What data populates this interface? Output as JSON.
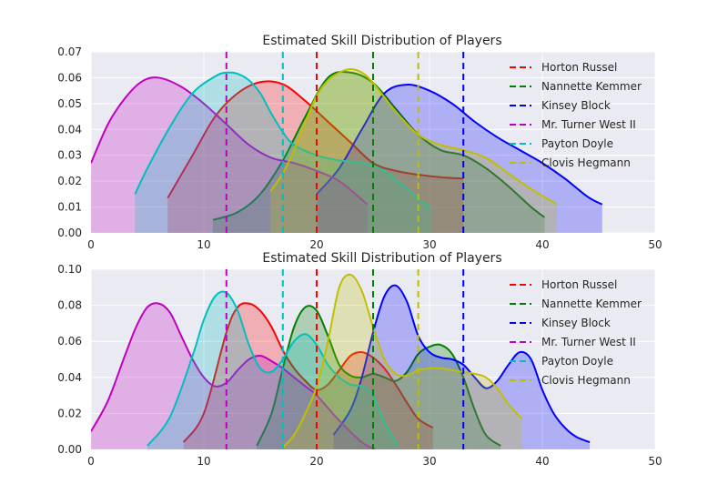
{
  "chart_data": [
    {
      "type": "area",
      "title": "Estimated Skill Distribution of Players",
      "xlim": [
        0,
        50
      ],
      "ylim": [
        0,
        0.07
      ],
      "xticks": [
        "0",
        "10",
        "20",
        "30",
        "40",
        "50"
      ],
      "yticks": [
        "0.00",
        "0.01",
        "0.02",
        "0.03",
        "0.04",
        "0.05",
        "0.06",
        "0.07"
      ],
      "grid": true,
      "legend": "upper-right",
      "series": [
        {
          "name": "Horton Russel",
          "color": "#ff0000",
          "mean_line": 20,
          "x": [
            6.8,
            9,
            11,
            13,
            15,
            17,
            19,
            21,
            23,
            25,
            27,
            29,
            31,
            33
          ],
          "y": [
            0.0135,
            0.03,
            0.045,
            0.054,
            0.0583,
            0.0575,
            0.051,
            0.043,
            0.035,
            0.027,
            0.024,
            0.0225,
            0.0215,
            0.021
          ]
        },
        {
          "name": "Nannette Kemmer",
          "color": "#008000",
          "mean_line": 25,
          "x": [
            10.8,
            13,
            15,
            17,
            19,
            21,
            23,
            25,
            27,
            29,
            31,
            33,
            35,
            37,
            39,
            40.2
          ],
          "y": [
            0.005,
            0.008,
            0.015,
            0.028,
            0.045,
            0.06,
            0.062,
            0.058,
            0.048,
            0.038,
            0.032,
            0.03,
            0.025,
            0.018,
            0.01,
            0.006
          ]
        },
        {
          "name": "Kinsey Block",
          "color": "#0000ff",
          "mean_line": 33,
          "x": [
            20,
            22,
            24,
            26,
            28,
            30,
            32,
            34,
            36,
            38,
            40,
            42,
            44,
            45.3
          ],
          "y": [
            0.015,
            0.025,
            0.04,
            0.054,
            0.0573,
            0.055,
            0.05,
            0.043,
            0.037,
            0.032,
            0.027,
            0.021,
            0.014,
            0.011
          ]
        },
        {
          "name": "Mr. Turner West II",
          "color": "#bf00bf",
          "mean_line": 12,
          "x": [
            0,
            1.5,
            3,
            4.5,
            6,
            8,
            10,
            12,
            14,
            16,
            18,
            20,
            22,
            24.5
          ],
          "y": [
            0.027,
            0.042,
            0.052,
            0.0585,
            0.06,
            0.0565,
            0.05,
            0.042,
            0.034,
            0.029,
            0.027,
            0.024,
            0.02,
            0.011
          ]
        },
        {
          "name": "Payton Doyle",
          "color": "#00bfbf",
          "mean_line": 17,
          "x": [
            3.9,
            5,
            7,
            9,
            11,
            12,
            13,
            14,
            15,
            16,
            17,
            18,
            20,
            22,
            24,
            26,
            28,
            30.2
          ],
          "y": [
            0.015,
            0.025,
            0.041,
            0.054,
            0.0605,
            0.062,
            0.0615,
            0.059,
            0.054,
            0.046,
            0.039,
            0.034,
            0.03,
            0.028,
            0.027,
            0.024,
            0.017,
            0.009
          ]
        },
        {
          "name": "Clovis Hegmann",
          "color": "#bfbf00",
          "mean_line": 29,
          "x": [
            15.9,
            17,
            18,
            19,
            20,
            21,
            22,
            23,
            24,
            25,
            27,
            29,
            31,
            33,
            35,
            37,
            39,
            41.3
          ],
          "y": [
            0.016,
            0.023,
            0.032,
            0.043,
            0.053,
            0.059,
            0.062,
            0.0633,
            0.062,
            0.058,
            0.047,
            0.038,
            0.034,
            0.032,
            0.029,
            0.023,
            0.017,
            0.011
          ]
        }
      ]
    },
    {
      "type": "area",
      "title": "Estimated Skill Distribution of Players",
      "xlim": [
        0,
        50
      ],
      "ylim": [
        0,
        0.1
      ],
      "xticks": [
        "0",
        "10",
        "20",
        "30",
        "40",
        "50"
      ],
      "yticks": [
        "0.00",
        "0.02",
        "0.04",
        "0.06",
        "0.08",
        "0.10"
      ],
      "grid": true,
      "legend": "upper-right",
      "series": [
        {
          "name": "Horton Russel",
          "color": "#ff0000",
          "mean_line": 20,
          "x": [
            8.2,
            10,
            12,
            13,
            14,
            15,
            16,
            17,
            18,
            19,
            20,
            21,
            22,
            23,
            24,
            25,
            26,
            27,
            28,
            29,
            30.3
          ],
          "y": [
            0.004,
            0.02,
            0.065,
            0.079,
            0.081,
            0.077,
            0.068,
            0.055,
            0.045,
            0.038,
            0.033,
            0.036,
            0.044,
            0.052,
            0.054,
            0.051,
            0.045,
            0.036,
            0.026,
            0.017,
            0.012
          ]
        },
        {
          "name": "Nannette Kemmer",
          "color": "#008000",
          "mean_line": 25,
          "x": [
            14.7,
            16,
            17,
            18,
            19,
            20,
            21,
            22,
            23,
            24,
            25,
            26,
            27,
            28,
            29,
            30,
            31,
            32,
            33,
            34,
            35,
            36.3
          ],
          "y": [
            0.002,
            0.02,
            0.045,
            0.068,
            0.079,
            0.077,
            0.063,
            0.047,
            0.041,
            0.04,
            0.042,
            0.04,
            0.038,
            0.043,
            0.053,
            0.057,
            0.058,
            0.053,
            0.04,
            0.022,
            0.008,
            0.002
          ]
        },
        {
          "name": "Kinsey Block",
          "color": "#0000ff",
          "mean_line": 33,
          "x": [
            21.5,
            23,
            24,
            25,
            26,
            27,
            28,
            29,
            30,
            31,
            32,
            33,
            34,
            35,
            36,
            37,
            38,
            39,
            40,
            41,
            42,
            43,
            44.2
          ],
          "y": [
            0.008,
            0.022,
            0.04,
            0.065,
            0.085,
            0.091,
            0.082,
            0.063,
            0.054,
            0.051,
            0.05,
            0.047,
            0.04,
            0.034,
            0.038,
            0.047,
            0.054,
            0.05,
            0.033,
            0.02,
            0.012,
            0.007,
            0.004
          ]
        },
        {
          "name": "Mr. Turner West II",
          "color": "#bf00bf",
          "mean_line": 12,
          "x": [
            0,
            1.5,
            3,
            4,
            5,
            6,
            7,
            8,
            9,
            10,
            11,
            12,
            13,
            14,
            15,
            16,
            17,
            18,
            19,
            20,
            22,
            24,
            25.2
          ],
          "y": [
            0.01,
            0.027,
            0.052,
            0.068,
            0.079,
            0.081,
            0.076,
            0.063,
            0.05,
            0.04,
            0.035,
            0.037,
            0.044,
            0.05,
            0.052,
            0.049,
            0.045,
            0.04,
            0.035,
            0.03,
            0.016,
            0.004,
            0.0
          ]
        },
        {
          "name": "Payton Doyle",
          "color": "#00bfbf",
          "mean_line": 17,
          "x": [
            5,
            7,
            9,
            10,
            11,
            12,
            13,
            14,
            15,
            16,
            17,
            18,
            19,
            20,
            21,
            22,
            23,
            24,
            25,
            26,
            27.2
          ],
          "y": [
            0.002,
            0.018,
            0.052,
            0.072,
            0.085,
            0.087,
            0.077,
            0.058,
            0.045,
            0.043,
            0.05,
            0.06,
            0.064,
            0.058,
            0.047,
            0.04,
            0.036,
            0.035,
            0.03,
            0.015,
            0.002
          ]
        },
        {
          "name": "Clovis Hegmann",
          "color": "#bfbf00",
          "mean_line": 29,
          "x": [
            17,
            18,
            19,
            20,
            21,
            22,
            23,
            24,
            25,
            26,
            27,
            28,
            29,
            30,
            31,
            32,
            33,
            34,
            35,
            36,
            37,
            38.2
          ],
          "y": [
            0.001,
            0.008,
            0.02,
            0.035,
            0.06,
            0.09,
            0.097,
            0.088,
            0.068,
            0.05,
            0.042,
            0.041,
            0.044,
            0.045,
            0.045,
            0.044,
            0.043,
            0.042,
            0.04,
            0.034,
            0.025,
            0.017
          ]
        }
      ]
    }
  ]
}
